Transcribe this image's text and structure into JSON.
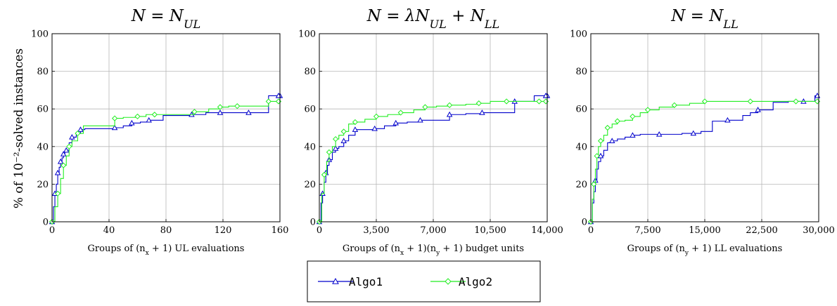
{
  "colors": {
    "algo1": "#0000cc",
    "algo2": "#22ee22",
    "grid": "#b8b8b8"
  },
  "y_axis_label": "% of 10⁻²-solved instances",
  "legend": {
    "entries": [
      "Algo1",
      "Algo2"
    ],
    "placement": "bottom-center"
  },
  "chart_data": [
    {
      "type": "line",
      "step": true,
      "title": "N = N_UL",
      "xlabel": "Groups of (n_x + 1) UL evaluations",
      "ylabel": "% of 10⁻²-solved instances",
      "xlim": [
        0,
        160
      ],
      "ylim": [
        0,
        100
      ],
      "xticks": [
        "0",
        "40",
        "80",
        "120",
        "160"
      ],
      "yticks": [
        "0",
        "20",
        "40",
        "60",
        "80",
        "100"
      ],
      "grid": true,
      "series": [
        {
          "name": "Algo1",
          "marker": "triangle",
          "x": [
            0,
            1,
            2,
            3,
            4,
            5,
            6,
            7,
            8,
            9,
            10,
            12,
            14,
            17,
            20,
            23,
            44,
            50,
            56,
            62,
            68,
            78,
            98,
            108,
            118,
            128,
            138,
            152,
            160
          ],
          "y": [
            0,
            8,
            15,
            20,
            26,
            29,
            32,
            34,
            36,
            37,
            38,
            42,
            45,
            47,
            49,
            49.5,
            50,
            51,
            52.5,
            53,
            54,
            56.5,
            57,
            58,
            58,
            58,
            58,
            67,
            67
          ]
        },
        {
          "name": "Algo2",
          "marker": "diamond",
          "x": [
            0,
            2,
            4,
            6,
            8,
            10,
            12,
            14,
            18,
            22,
            44,
            50,
            60,
            66,
            72,
            86,
            100,
            110,
            118,
            124,
            130,
            140,
            152,
            160
          ],
          "y": [
            0,
            8,
            15,
            23,
            30,
            35,
            40,
            43,
            47,
            51,
            55,
            55.5,
            56,
            57,
            57,
            57,
            58.5,
            60,
            61,
            61.5,
            61.5,
            61.5,
            64,
            64
          ]
        }
      ]
    },
    {
      "type": "line",
      "step": true,
      "title": "N = λN_UL + N_LL",
      "xlabel": "Groups of (n_x + 1)(n_y + 1) budget units",
      "ylabel": "",
      "xlim": [
        0,
        14000
      ],
      "ylim": [
        0,
        100
      ],
      "xticks": [
        "0",
        "3,500",
        "7,000",
        "10,500",
        "14,000"
      ],
      "yticks": [
        "0",
        "20",
        "40",
        "60",
        "80",
        "100"
      ],
      "grid": true,
      "series": [
        {
          "name": "Algo1",
          "marker": "triangle",
          "x": [
            0,
            100,
            200,
            300,
            400,
            500,
            600,
            800,
            1000,
            1200,
            1500,
            1800,
            2200,
            2800,
            3400,
            4000,
            4700,
            5400,
            6200,
            7000,
            8000,
            9000,
            10000,
            11000,
            12000,
            13200,
            14000
          ],
          "y": [
            0,
            10,
            15,
            21,
            26,
            30,
            33,
            37,
            39,
            40,
            43,
            46,
            49,
            49,
            49.5,
            51,
            52.5,
            53,
            54,
            54,
            57,
            57.5,
            58,
            58,
            64,
            67,
            67
          ]
        },
        {
          "name": "Algo2",
          "marker": "diamond",
          "x": [
            0,
            150,
            300,
            450,
            600,
            800,
            1000,
            1200,
            1500,
            1800,
            2200,
            2800,
            3500,
            4200,
            5000,
            5800,
            6500,
            7200,
            8000,
            9000,
            9800,
            10500,
            11500,
            12500,
            13500,
            14000
          ],
          "y": [
            0,
            15,
            25,
            32,
            37,
            40,
            44,
            46,
            48,
            52,
            53,
            54.5,
            56,
            57,
            58,
            59.5,
            61,
            61.5,
            62,
            62.5,
            63,
            64,
            64,
            64,
            64,
            64
          ]
        }
      ]
    },
    {
      "type": "line",
      "step": true,
      "title": "N = N_LL",
      "xlabel": "Groups of (n_y + 1) LL evaluations",
      "ylabel": "",
      "xlim": [
        0,
        30000
      ],
      "ylim": [
        0,
        100
      ],
      "xticks": [
        "0",
        "7,500",
        "15,000",
        "22,500",
        "30,000"
      ],
      "yticks": [
        "0",
        "20",
        "40",
        "60",
        "80",
        "100"
      ],
      "grid": true,
      "series": [
        {
          "name": "Algo1",
          "marker": "triangle",
          "x": [
            0,
            200,
            400,
            600,
            800,
            1000,
            1300,
            1700,
            2200,
            2800,
            3500,
            4500,
            5500,
            6500,
            7500,
            9000,
            10500,
            12000,
            13500,
            14500,
            16000,
            18000,
            20000,
            21000,
            22000,
            24000,
            26000,
            28000,
            29500,
            30000
          ],
          "y": [
            0,
            10,
            16,
            22,
            28,
            32,
            35,
            38,
            42,
            43,
            44,
            45,
            46,
            46.5,
            46.5,
            46.5,
            46.5,
            47,
            47,
            48,
            53.5,
            54,
            56.5,
            58,
            59.5,
            63.5,
            64,
            64,
            67,
            67
          ]
        },
        {
          "name": "Algo2",
          "marker": "diamond",
          "x": [
            0,
            200,
            400,
            600,
            800,
            1000,
            1300,
            1700,
            2200,
            2800,
            3500,
            4500,
            5500,
            6500,
            7500,
            9000,
            11000,
            13000,
            15000,
            18000,
            21000,
            24000,
            27000,
            30000
          ],
          "y": [
            0,
            12,
            20,
            28,
            35,
            40,
            43,
            46,
            50,
            52,
            53.5,
            54,
            56,
            58,
            59.5,
            61,
            62,
            63,
            64,
            64,
            64,
            64,
            64,
            64
          ]
        }
      ]
    }
  ]
}
